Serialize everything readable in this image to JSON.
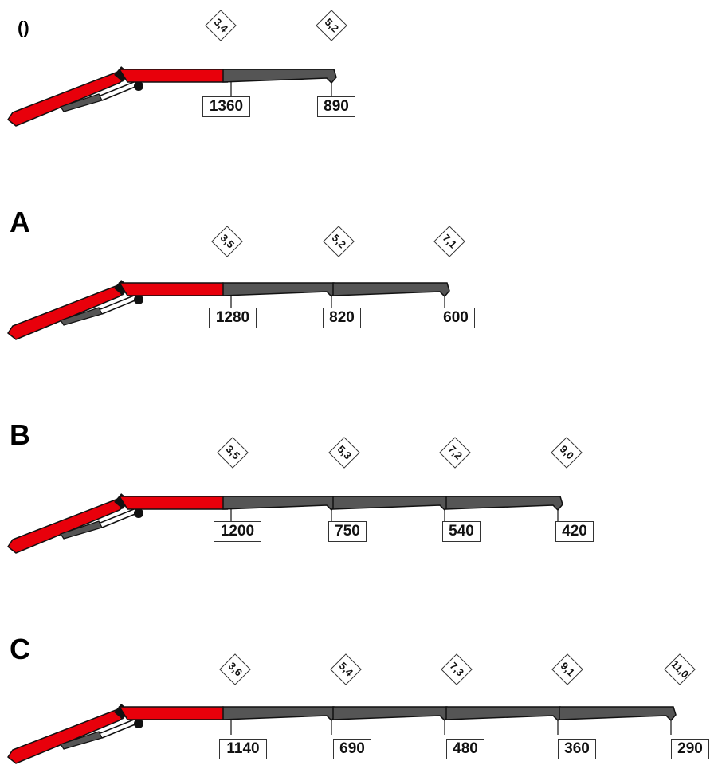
{
  "variants": [
    {
      "label": "()",
      "reaches": [
        "3,4",
        "5,2"
      ],
      "loads": [
        "1360",
        "890"
      ]
    },
    {
      "label": "A",
      "reaches": [
        "3,5",
        "5,2",
        "7,1"
      ],
      "loads": [
        "1280",
        "820",
        "600"
      ]
    },
    {
      "label": "B",
      "reaches": [
        "3,5",
        "5,3",
        "7,2",
        "9,0"
      ],
      "loads": [
        "1200",
        "750",
        "540",
        "420"
      ]
    },
    {
      "label": "C",
      "reaches": [
        "3,6",
        "5,4",
        "7,3",
        "9,1",
        "11,0"
      ],
      "loads": [
        "1140",
        "690",
        "480",
        "360",
        "290"
      ]
    }
  ],
  "colors": {
    "boom_red": "#e8000b",
    "extension_gray": "#555555",
    "outline": "#111111"
  }
}
